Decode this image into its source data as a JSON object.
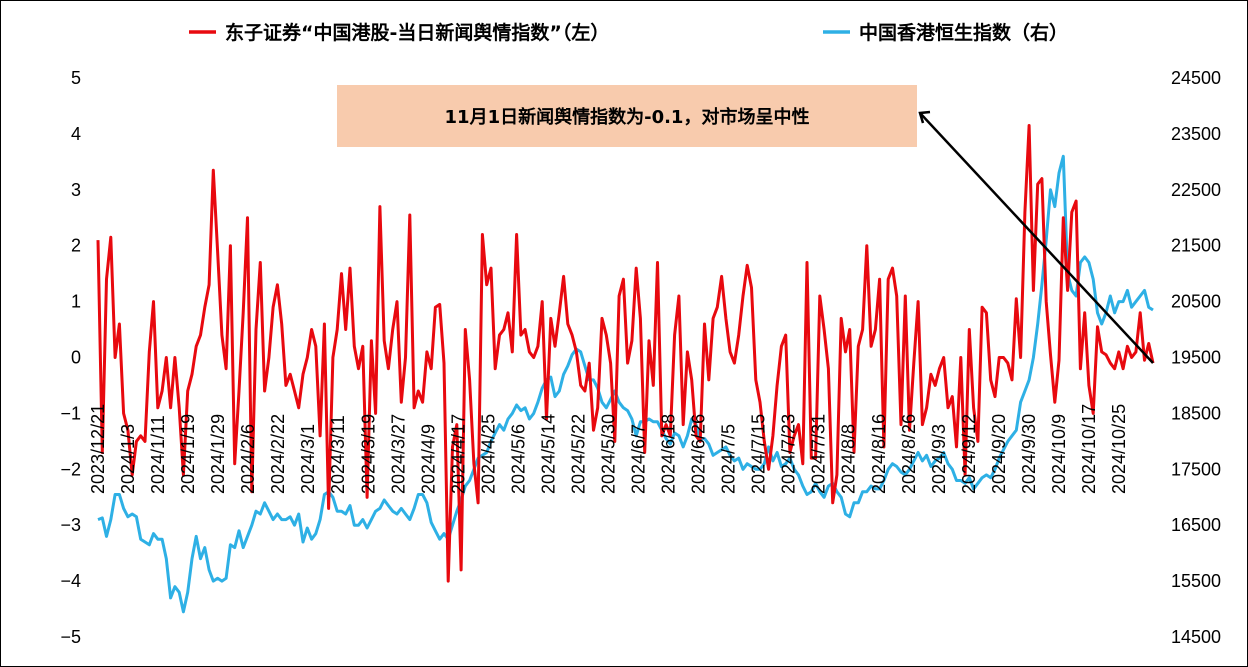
{
  "chart_data": {
    "type": "line",
    "title": "",
    "xlabel": "",
    "ylabel": "",
    "y_left_lim": [
      -5,
      5
    ],
    "y_left_ticks": [
      "5",
      "4",
      "3",
      "2",
      "1",
      "0",
      "−1",
      "−2",
      "−3",
      "−4",
      "−5"
    ],
    "y_right_lim": [
      14500,
      24500
    ],
    "y_right_ticks": [
      "24500",
      "23500",
      "22500",
      "21500",
      "20500",
      "19500",
      "18500",
      "17500",
      "16500",
      "15500",
      "14500"
    ],
    "x_ticks": [
      "2023/12/21",
      "2024/1/3",
      "2024/1/11",
      "2024/1/19",
      "2024/1/29",
      "2024/2/6",
      "2024/2/22",
      "2024/3/1",
      "2024/3/11",
      "2024/3/19",
      "2024/3/27",
      "2024/4/9",
      "2024/4/17",
      "2024/4/25",
      "2024/5/6",
      "2024/5/14",
      "2024/5/22",
      "2024/5/30",
      "2024/6/7",
      "2024/6/18",
      "2024/6/26",
      "2024/7/5",
      "2024/7/15",
      "2024/7/23",
      "2024/7/31",
      "2024/8/8",
      "2024/8/16",
      "2024/8/26",
      "2024/9/3",
      "2024/9/12",
      "2024/9/20",
      "2024/9/30",
      "2024/10/9",
      "2024/10/17",
      "2024/10/25"
    ],
    "legend_position": "top",
    "grid": false,
    "series": [
      {
        "name": "东子证券“中国港股-当日新闻舆情指数”（左）",
        "axis": "left",
        "color": "#e8090f",
        "values": [
          2.1,
          -1.7,
          1.4,
          2.15,
          0,
          0.6,
          -1.0,
          -1.3,
          -2.1,
          -1.5,
          -1.4,
          -1.5,
          0.1,
          1.0,
          -0.9,
          -0.6,
          0,
          -0.9,
          0,
          -0.9,
          -2.1,
          -0.6,
          -0.3,
          0.2,
          0.4,
          0.9,
          1.3,
          3.35,
          1.9,
          0.4,
          -0.2,
          2.0,
          -1.9,
          -0.6,
          0.8,
          2.5,
          -2.4,
          0.5,
          1.7,
          -0.6,
          0.0,
          0.9,
          1.3,
          0.6,
          -0.5,
          -0.3,
          -0.6,
          -0.9,
          -0.3,
          0,
          0.5,
          0.2,
          -1.4,
          0.6,
          -2.7,
          0,
          0.5,
          1.5,
          0.5,
          1.6,
          0.2,
          -0.2,
          0.2,
          -2.5,
          0.3,
          -1.0,
          2.7,
          0.3,
          -0.2,
          0.5,
          1.0,
          -0.8,
          0,
          2.55,
          -0.9,
          -0.6,
          -0.8,
          0.1,
          -0.2,
          0.9,
          0.95,
          -0.1,
          -4.0,
          -1.6,
          -1.2,
          -3.8,
          0.5,
          -0.4,
          -1.9,
          -2.6,
          2.2,
          1.3,
          1.6,
          -0.2,
          0.4,
          0.5,
          0.8,
          0.1,
          2.2,
          0.4,
          0.5,
          0.1,
          0,
          0.2,
          1.0,
          -1.1,
          0.7,
          0.2,
          0.8,
          1.45,
          0.6,
          0.4,
          0.1,
          -0.5,
          -0.6,
          -0.1,
          -1.3,
          -0.9,
          0.7,
          0.4,
          -0.1,
          -1.5,
          1.1,
          1.4,
          -0.1,
          0.3,
          1.6,
          0.7,
          -1.7,
          0.3,
          -0.5,
          1.7,
          -1.4,
          -1.2,
          -1.4,
          0.4,
          1.1,
          -1.2,
          0.1,
          -0.4,
          -1.4,
          -1.5,
          0.6,
          -0.4,
          0.7,
          0.9,
          1.45,
          0.7,
          0.1,
          -0.1,
          0.4,
          1.1,
          1.65,
          1.25,
          -0.4,
          -0.8,
          -1.5,
          -2.0,
          -1.4,
          -0.5,
          0.2,
          0.4,
          -1.7,
          -1.4,
          -1.2,
          -1.9,
          1.7,
          -1.8,
          -1.8,
          1.1,
          0.5,
          -0.2,
          -2.6,
          -2.1,
          0.7,
          0.1,
          0.5,
          -1.7,
          0.2,
          0.5,
          2.0,
          0.2,
          0.5,
          1.4,
          -1.6,
          1.4,
          1.6,
          1.1,
          -1.2,
          1.1,
          -1.3,
          -0.1,
          1.0,
          -1.2,
          -0.9,
          -0.3,
          -0.5,
          -0.2,
          0,
          -0.9,
          -0.7,
          -1.6,
          0,
          -2.1,
          0.5,
          -0.9,
          -1.5,
          0.9,
          0.8,
          -0.4,
          -0.7,
          0,
          0,
          -0.1,
          -0.4,
          1.05,
          0,
          2.6,
          4.15,
          1.2,
          3.1,
          3.2,
          1.0,
          0.05,
          -0.8,
          -0.05,
          2.5,
          1.2,
          2.6,
          2.8,
          -0.2,
          0.8,
          -0.5,
          -1.0,
          0.55,
          0.1,
          0.05,
          -0.1,
          -0.2,
          0.1,
          -0.2,
          0.2,
          0,
          0.1,
          0.8,
          -0.05,
          0.25,
          -0.1
        ]
      },
      {
        "name": "中国香港恒生指数（右）",
        "axis": "right",
        "color": "#2eb0e5",
        "values": [
          16600,
          16630,
          16300,
          16600,
          17050,
          17050,
          16800,
          16650,
          16700,
          16650,
          16250,
          16200,
          16150,
          16350,
          16250,
          16250,
          15900,
          15200,
          15400,
          15300,
          14950,
          15300,
          15900,
          16300,
          15900,
          16100,
          15700,
          15500,
          15550,
          15500,
          15550,
          16150,
          16100,
          16400,
          16100,
          16300,
          16500,
          16750,
          16700,
          16900,
          16750,
          16600,
          16700,
          16600,
          16600,
          16650,
          16500,
          16700,
          16200,
          16450,
          16250,
          16350,
          16600,
          17050,
          17100,
          17000,
          16750,
          16750,
          16700,
          16850,
          16500,
          16500,
          16600,
          16450,
          16600,
          16750,
          16800,
          16950,
          16850,
          16750,
          16700,
          16800,
          16700,
          16600,
          16800,
          17050,
          17050,
          16900,
          16550,
          16400,
          16250,
          16350,
          16250,
          16500,
          16750,
          16950,
          17200,
          17300,
          17500,
          17700,
          17750,
          17800,
          18000,
          18150,
          18300,
          18200,
          18400,
          18500,
          18650,
          18550,
          18600,
          18400,
          18500,
          18700,
          18950,
          19100,
          19150,
          18800,
          18900,
          19200,
          19350,
          19550,
          19650,
          19600,
          19350,
          19100,
          19100,
          18950,
          18700,
          18600,
          18750,
          18900,
          18700,
          18600,
          18550,
          18400,
          18100,
          18350,
          18350,
          18400,
          18350,
          18350,
          18200,
          18050,
          17950,
          18150,
          18100,
          17900,
          18100,
          18400,
          18300,
          18050,
          18050,
          17950,
          17750,
          17800,
          17850,
          17900,
          17750,
          17650,
          17700,
          17500,
          17600,
          17550,
          17500,
          17500,
          17600,
          17900,
          17650,
          17800,
          17550,
          17600,
          17700,
          17500,
          17400,
          17200,
          17050,
          17100,
          17250,
          17100,
          17000,
          17200,
          17250,
          17100,
          17000,
          16700,
          16650,
          16900,
          16900,
          17100,
          17100,
          17200,
          17150,
          17150,
          17300,
          17500,
          17600,
          17550,
          17450,
          17400,
          17500,
          17650,
          17800,
          17650,
          17750,
          17550,
          17650,
          17700,
          17800,
          17600,
          17500,
          17300,
          17300,
          17250,
          17350,
          17150,
          17250,
          17350,
          17400,
          17350,
          17500,
          17700,
          17850,
          18000,
          18100,
          18200,
          18700,
          18900,
          19100,
          19500,
          20100,
          20800,
          21600,
          22500,
          22200,
          22800,
          23100,
          21000,
          20700,
          20600,
          21200,
          21300,
          21200,
          20900,
          20300,
          20100,
          20300,
          20600,
          20300,
          20500,
          20500,
          20700,
          20400,
          20500,
          20600,
          20700,
          20400,
          20350
        ]
      }
    ],
    "annotation": "11月1日新闻舆情指数为-0.1，对市场呈中性"
  }
}
